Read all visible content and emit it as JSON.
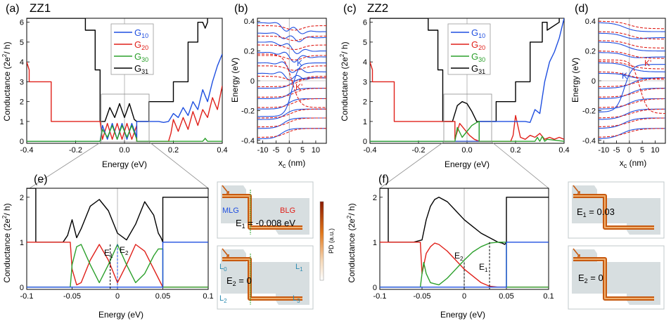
{
  "colors": {
    "G10": "#1f4fe0",
    "G20": "#e0201a",
    "G30": "#2ca02c",
    "G31": "#000000",
    "dashed_red": "#e0201a",
    "grid": "#9a9a9a",
    "device_bg": "#c9d3d6",
    "pd_dark": "#8b1a00",
    "pd_mid": "#e3781a",
    "pd_light": "#f6d9b8"
  },
  "panels": {
    "a": {
      "label": "(a)",
      "title": "ZZ1"
    },
    "b": {
      "label": "(b)"
    },
    "c": {
      "label": "(c)",
      "title": "ZZ2"
    },
    "d": {
      "label": "(d)"
    },
    "e": {
      "label": "(e)"
    },
    "f": {
      "label": "(f)"
    }
  },
  "legend": {
    "G10": {
      "main": "G",
      "sub": "10"
    },
    "G20": {
      "main": "G",
      "sub": "20"
    },
    "G30": {
      "main": "G",
      "sub": "30"
    },
    "G31": {
      "main": "G",
      "sub": "31"
    }
  },
  "axes": {
    "conductance_prefix": "Conductance (2e",
    "conductance_sup": "2",
    "conductance_suffix": "/ h)",
    "energy_ev": "Energy (eV)",
    "xc_main": "x",
    "xc_sub": "c",
    "xc_unit": "(nm)",
    "pd": "PD (a.u.)"
  },
  "annotations": {
    "b_K": "K",
    "b_Kp": "K'",
    "d_K": "K",
    "d_Kp": "K'",
    "e_E1": {
      "main": "E",
      "sub": "1"
    },
    "e_E2": {
      "main": "E",
      "sub": "2"
    },
    "f_E1": {
      "main": "E",
      "sub": "1"
    },
    "f_E2": {
      "main": "E",
      "sub": "2"
    },
    "dev_MLG": "MLG",
    "dev_BLG": "BLG",
    "dev_L0": {
      "main": "L",
      "sub": "0"
    },
    "dev_L1": {
      "main": "L",
      "sub": "1"
    },
    "dev_L2": {
      "main": "L",
      "sub": "2"
    },
    "dev_L3": {
      "main": "L",
      "sub": "3"
    },
    "dev_e1a": {
      "main": "E",
      "sub": "1",
      "rest": " = -0.008 eV"
    },
    "dev_e2a": {
      "main": "E",
      "sub": "2",
      "rest": " = 0"
    },
    "dev_e1b": {
      "main": "E",
      "sub": "1",
      "rest": " = 0.03"
    },
    "dev_e2b": {
      "main": "E",
      "sub": "2",
      "rest": " = 0"
    }
  },
  "chart_data": [
    {
      "id": "a",
      "type": "line",
      "xlim": [
        -0.4,
        0.4
      ],
      "ylim": [
        -0.1,
        6.2
      ],
      "xticks": [
        "-0.4",
        "-0.2",
        "0.0",
        "0.2",
        "0.4"
      ],
      "yticks": [
        "0",
        "1",
        "2",
        "3",
        "4",
        "5",
        "6"
      ],
      "series": [
        {
          "name": "G31",
          "x": [
            -0.4,
            -0.16,
            -0.16,
            -0.12,
            -0.12,
            -0.1,
            -0.1,
            -0.08,
            -0.06,
            -0.04,
            -0.02,
            0.0,
            0.02,
            0.04,
            0.05,
            0.05,
            0.1,
            0.1,
            0.2,
            0.2,
            0.26,
            0.26,
            0.3,
            0.3,
            0.32,
            0.33,
            0.34,
            0.34
          ],
          "y": [
            6.2,
            6.2,
            5.6,
            5.6,
            3.6,
            3.6,
            1.0,
            1.0,
            1.7,
            1.2,
            1.9,
            1.2,
            1.9,
            1.1,
            1.0,
            1.0,
            1.0,
            2.0,
            2.0,
            3.0,
            3.0,
            5.0,
            5.0,
            6.0,
            6.0,
            5.7,
            6.0,
            6.2
          ]
        },
        {
          "name": "G20",
          "x": [
            -0.4,
            -0.4,
            -0.39,
            -0.39,
            -0.3,
            -0.3,
            -0.1,
            -0.09,
            -0.07,
            -0.05,
            -0.03,
            -0.01,
            0.01,
            0.03,
            0.05,
            0.05,
            0.18,
            0.19,
            0.2,
            0.22,
            0.24,
            0.26,
            0.28,
            0.3,
            0.32,
            0.34,
            0.36,
            0.38,
            0.4
          ],
          "y": [
            4.0,
            4.0,
            3.6,
            3.0,
            3.0,
            1.0,
            1.0,
            0.1,
            0.9,
            0.1,
            0.9,
            0.1,
            0.9,
            0.1,
            0.8,
            0.0,
            0.0,
            0.4,
            1.1,
            0.5,
            1.2,
            0.6,
            1.5,
            0.8,
            1.6,
            1.2,
            2.2,
            1.6,
            2.8
          ]
        },
        {
          "name": "G10",
          "x": [
            -0.4,
            -0.1,
            -0.09,
            -0.07,
            -0.05,
            -0.03,
            -0.01,
            0.01,
            0.03,
            0.05,
            0.05,
            0.14,
            0.16,
            0.18,
            0.2,
            0.22,
            0.24,
            0.26,
            0.28,
            0.3,
            0.32,
            0.34,
            0.36,
            0.38,
            0.4
          ],
          "y": [
            0.0,
            0.0,
            0.8,
            0.1,
            0.9,
            0.1,
            0.9,
            0.1,
            0.9,
            0.2,
            1.0,
            1.0,
            0.95,
            1.0,
            1.4,
            1.2,
            1.7,
            1.3,
            2.0,
            1.6,
            2.6,
            2.0,
            3.0,
            3.8,
            4.4
          ]
        },
        {
          "name": "G30",
          "x": [
            -0.4,
            -0.1,
            -0.09,
            -0.07,
            -0.05,
            -0.03,
            -0.01,
            0.01,
            0.03,
            0.05,
            0.05,
            0.32,
            0.33,
            0.34,
            0.4
          ],
          "y": [
            0.0,
            0.0,
            0.6,
            0.2,
            0.8,
            0.1,
            0.8,
            0.2,
            0.8,
            0.1,
            0.0,
            0.0,
            0.15,
            0.0,
            0.0
          ]
        }
      ]
    },
    {
      "id": "b",
      "type": "line",
      "xlim": [
        -12,
        14
      ],
      "ylim": [
        -0.42,
        0.42
      ],
      "xticks": [
        "-10",
        "-5",
        "0",
        "5",
        "10"
      ],
      "yticks": [
        "-0.4",
        "-0.2",
        "0",
        "0.2",
        "0.4"
      ]
    },
    {
      "id": "c",
      "type": "line",
      "xlim": [
        -0.4,
        0.4
      ],
      "ylim": [
        -0.1,
        6.2
      ],
      "xticks": [
        "-0.4",
        "-0.2",
        "0.0",
        "0.2",
        "0.4"
      ],
      "yticks": [
        "0",
        "1",
        "2",
        "3",
        "4",
        "5",
        "6"
      ],
      "series": [
        {
          "name": "G31",
          "x": [
            -0.4,
            -0.16,
            -0.16,
            -0.12,
            -0.12,
            -0.1,
            -0.1,
            -0.06,
            -0.04,
            -0.02,
            0.0,
            0.02,
            0.04,
            0.05,
            0.05,
            0.12,
            0.12,
            0.2,
            0.2,
            0.26,
            0.26,
            0.31,
            0.31,
            0.33,
            0.33,
            0.38,
            0.38
          ],
          "y": [
            6.2,
            6.2,
            5.6,
            5.6,
            3.6,
            3.6,
            1.0,
            1.0,
            1.8,
            2.0,
            1.9,
            1.5,
            1.0,
            1.0,
            1.0,
            1.0,
            2.0,
            2.0,
            3.0,
            3.0,
            5.0,
            5.0,
            6.0,
            6.0,
            5.6,
            6.0,
            6.2
          ]
        },
        {
          "name": "G20",
          "x": [
            -0.4,
            -0.4,
            -0.39,
            -0.39,
            -0.3,
            -0.3,
            -0.05,
            -0.05,
            -0.03,
            -0.01,
            0.01,
            0.03,
            0.05,
            0.05,
            0.18,
            0.19,
            0.2,
            0.22,
            0.24,
            0.26,
            0.28,
            0.3,
            0.32,
            0.34,
            0.36,
            0.38,
            0.4
          ],
          "y": [
            4.0,
            4.0,
            3.6,
            3.0,
            3.0,
            1.0,
            1.0,
            0.1,
            0.9,
            0.6,
            0.3,
            0.1,
            0.0,
            0.0,
            0.0,
            0.3,
            1.3,
            0.2,
            0.1,
            0.3,
            0.2,
            0.4,
            0.1,
            0.2,
            0.1,
            0.2,
            0.1
          ]
        },
        {
          "name": "G10",
          "x": [
            -0.4,
            -0.05,
            -0.05,
            0.05,
            0.05,
            0.22,
            0.24,
            0.26,
            0.28,
            0.3,
            0.32,
            0.34,
            0.36,
            0.38,
            0.4
          ],
          "y": [
            0.0,
            0.0,
            0.0,
            0.0,
            1.0,
            1.0,
            1.0,
            0.95,
            1.6,
            1.4,
            3.0,
            4.0,
            4.5,
            5.2,
            6.2
          ]
        },
        {
          "name": "G30",
          "x": [
            -0.4,
            -0.05,
            -0.04,
            -0.02,
            0.0,
            0.02,
            0.04,
            0.05,
            0.05,
            0.28,
            0.29,
            0.3,
            0.31,
            0.32,
            0.33,
            0.4
          ],
          "y": [
            0.0,
            0.0,
            0.7,
            0.2,
            0.5,
            0.8,
            0.95,
            1.0,
            0.0,
            0.0,
            0.2,
            0.0,
            0.25,
            0.0,
            0.1,
            0.0
          ]
        }
      ]
    },
    {
      "id": "d",
      "type": "line",
      "xlim": [
        -12,
        14
      ],
      "ylim": [
        -0.42,
        0.42
      ],
      "xticks": [
        "-10",
        "-5",
        "0",
        "5",
        "10"
      ],
      "yticks": [
        "-0.4",
        "-0.2",
        "0",
        "0.2",
        "0.4"
      ]
    },
    {
      "id": "e",
      "type": "line",
      "xlim": [
        -0.1,
        0.1
      ],
      "ylim": [
        -0.05,
        2.2
      ],
      "xticks": [
        "-0.1",
        "-0.05",
        "0",
        "0.05",
        "0.1"
      ],
      "yticks": [
        "0",
        "1",
        "2"
      ],
      "series": [
        {
          "name": "G31",
          "x": [
            -0.1,
            -0.09,
            -0.09,
            -0.06,
            -0.055,
            -0.05,
            -0.045,
            -0.04,
            -0.03,
            -0.02,
            -0.01,
            0.0,
            0.01,
            0.02,
            0.03,
            0.04,
            0.045,
            0.048,
            0.05,
            0.05,
            0.1
          ],
          "y": [
            2.2,
            2.2,
            1.0,
            1.0,
            1.15,
            1.5,
            1.1,
            1.3,
            1.8,
            1.95,
            1.7,
            1.2,
            1.05,
            1.4,
            1.9,
            1.6,
            1.2,
            1.1,
            1.0,
            2.0,
            2.0
          ]
        },
        {
          "name": "G20",
          "x": [
            -0.1,
            -0.052,
            -0.05,
            -0.045,
            -0.04,
            -0.03,
            -0.02,
            -0.01,
            0.0,
            0.01,
            0.02,
            0.03,
            0.04,
            0.045,
            0.05,
            0.05,
            0.1
          ],
          "y": [
            1.0,
            1.0,
            0.4,
            0.05,
            0.1,
            0.6,
            0.95,
            0.6,
            0.1,
            0.5,
            0.95,
            0.8,
            0.4,
            0.2,
            0.0,
            0.0,
            0.0
          ]
        },
        {
          "name": "G30",
          "x": [
            -0.1,
            -0.052,
            -0.05,
            -0.045,
            -0.04,
            -0.03,
            -0.02,
            -0.01,
            0.0,
            0.01,
            0.02,
            0.03,
            0.04,
            0.045,
            0.05,
            0.05,
            0.1
          ],
          "y": [
            0.0,
            0.0,
            0.5,
            0.9,
            0.95,
            0.5,
            0.1,
            0.5,
            0.95,
            0.5,
            0.1,
            0.3,
            0.7,
            0.85,
            0.85,
            0.0,
            0.0
          ]
        },
        {
          "name": "G10",
          "x": [
            -0.1,
            0.05,
            0.05,
            0.1
          ],
          "y": [
            0.0,
            0.0,
            1.0,
            1.0
          ]
        }
      ]
    },
    {
      "id": "f",
      "type": "line",
      "xlim": [
        -0.1,
        0.1
      ],
      "ylim": [
        -0.05,
        2.2
      ],
      "xticks": [
        "-0.1",
        "-0.05",
        "0",
        "0.05",
        "0.1"
      ],
      "yticks": [
        "0",
        "1",
        "2"
      ],
      "series": [
        {
          "name": "G31",
          "x": [
            -0.1,
            -0.095,
            -0.09,
            -0.09,
            -0.06,
            -0.05,
            -0.045,
            -0.04,
            -0.035,
            -0.03,
            -0.02,
            -0.01,
            0.0,
            0.01,
            0.02,
            0.03,
            0.04,
            0.045,
            0.048,
            0.05,
            0.05,
            0.1
          ],
          "y": [
            2.2,
            2.2,
            2.2,
            1.0,
            1.0,
            1.05,
            1.5,
            1.8,
            1.95,
            2.0,
            1.9,
            1.7,
            1.5,
            1.35,
            1.2,
            1.1,
            1.0,
            0.98,
            0.95,
            1.0,
            2.0,
            2.0
          ]
        },
        {
          "name": "G20",
          "x": [
            -0.1,
            -0.052,
            -0.05,
            -0.045,
            -0.04,
            -0.035,
            -0.03,
            -0.02,
            -0.01,
            0.0,
            0.01,
            0.02,
            0.03,
            0.04,
            0.05,
            0.05,
            0.1
          ],
          "y": [
            1.0,
            1.0,
            0.3,
            0.75,
            0.9,
            0.98,
            0.95,
            0.8,
            0.6,
            0.4,
            0.25,
            0.1,
            0.02,
            0.0,
            0.0,
            0.0,
            0.0
          ]
        },
        {
          "name": "G30",
          "x": [
            -0.1,
            -0.052,
            -0.05,
            -0.048,
            -0.045,
            -0.04,
            -0.03,
            -0.02,
            -0.01,
            0.0,
            0.01,
            0.02,
            0.03,
            0.04,
            0.05,
            0.05,
            0.1
          ],
          "y": [
            0.0,
            0.0,
            0.3,
            0.55,
            0.3,
            0.1,
            0.05,
            0.2,
            0.4,
            0.6,
            0.78,
            0.9,
            0.98,
            1.0,
            1.0,
            0.0,
            0.0
          ]
        },
        {
          "name": "G10",
          "x": [
            -0.1,
            0.05,
            0.05,
            0.1
          ],
          "y": [
            0.0,
            0.0,
            1.0,
            1.0
          ]
        }
      ]
    }
  ]
}
